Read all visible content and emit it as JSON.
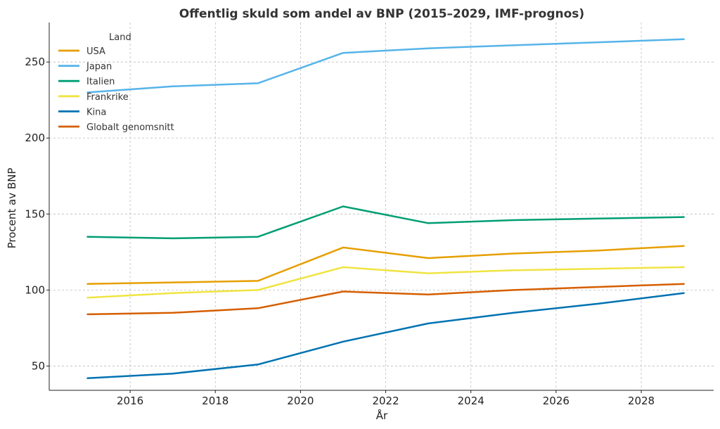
{
  "chart_data": {
    "type": "line",
    "title": "Offentlig skuld som andel av BNP (2015–2029, IMF-prognos)",
    "xlabel": "År",
    "ylabel": "Procent av BNP",
    "xlim": [
      2014.1,
      2029.7
    ],
    "ylim": [
      34,
      276
    ],
    "xticks": [
      2016,
      2018,
      2020,
      2022,
      2024,
      2026,
      2028
    ],
    "yticks": [
      50,
      100,
      150,
      200,
      250
    ],
    "grid": true,
    "legend": {
      "title": "Land",
      "placement": "top-left"
    },
    "x": [
      2015,
      2017,
      2019,
      2021,
      2023,
      2025,
      2027,
      2029
    ],
    "series": [
      {
        "name": "USA",
        "color": "#E69F00",
        "values": [
          104,
          105,
          106,
          128,
          121,
          124,
          126,
          129
        ]
      },
      {
        "name": "Japan",
        "color": "#56B4E9",
        "values": [
          230,
          234,
          236,
          256,
          259,
          261,
          263,
          265
        ]
      },
      {
        "name": "Italien",
        "color": "#009E73",
        "values": [
          135,
          134,
          135,
          155,
          144,
          146,
          147,
          148
        ]
      },
      {
        "name": "Frankrike",
        "color": "#F0E442",
        "values": [
          95,
          98,
          100,
          115,
          111,
          113,
          114,
          115
        ]
      },
      {
        "name": "Kina",
        "color": "#0072B2",
        "values": [
          42,
          45,
          51,
          66,
          78,
          85,
          91,
          98
        ]
      },
      {
        "name": "Globalt genomsnitt",
        "color": "#D55E00",
        "values": [
          84,
          85,
          88,
          99,
          97,
          100,
          102,
          104
        ]
      }
    ]
  }
}
